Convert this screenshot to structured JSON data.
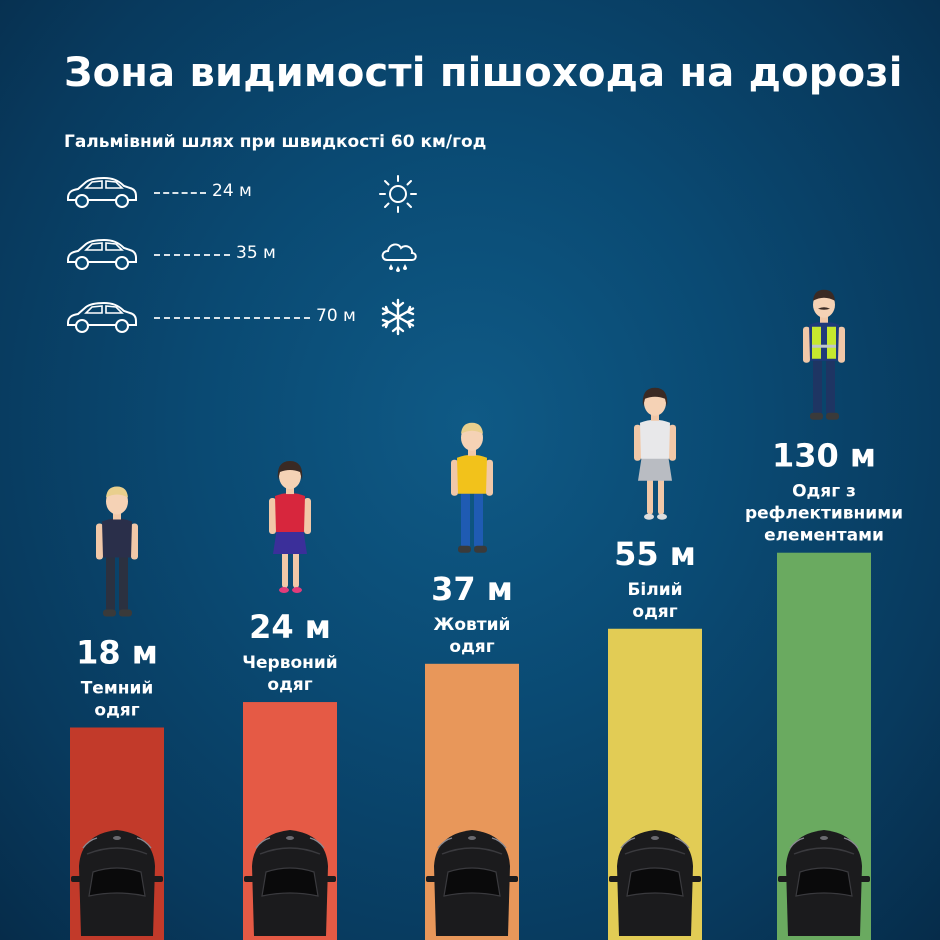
{
  "title": "Зона видимості пішохода на дорозі",
  "subtitle": "Гальмівний шлях при швидкості 60 км/год",
  "braking": [
    {
      "distance": "24 м",
      "meters": 24,
      "condition": "sun-icon"
    },
    {
      "distance": "35 м",
      "meters": 35,
      "condition": "rain-cloud-icon"
    },
    {
      "distance": "70 м",
      "meters": 70,
      "condition": "snowflake-icon"
    }
  ],
  "chart_data": {
    "type": "bar",
    "title": "Зона видимості пішохода на дорозі",
    "categories": [
      "Темний одяг",
      "Червоний одяг",
      "Жовтий одяг",
      "Білий одяг",
      "Одяг з рефлективними елементами"
    ],
    "values": [
      18,
      24,
      37,
      55,
      130
    ],
    "value_labels": [
      "18 м",
      "24 м",
      "37 м",
      "55 м",
      "130 м"
    ],
    "label_lines": [
      [
        "Темний",
        "одяг"
      ],
      [
        "Червоний",
        "одяг"
      ],
      [
        "Жовтий",
        "одяг"
      ],
      [
        "Білий",
        "одяг"
      ],
      [
        "Одяг з",
        "рефлективними",
        "елементами"
      ]
    ],
    "colors": [
      "#c23a2a",
      "#e55a45",
      "#e8975a",
      "#e2cc55",
      "#6aaa60"
    ],
    "pedestrians": [
      "dark-clothes-pedestrian-icon",
      "red-dress-pedestrian-icon",
      "yellow-shirt-pedestrian-icon",
      "white-clothes-pedestrian-icon",
      "reflective-vest-pedestrian-icon"
    ],
    "xlabel": "",
    "ylabel": "",
    "grid": false
  }
}
